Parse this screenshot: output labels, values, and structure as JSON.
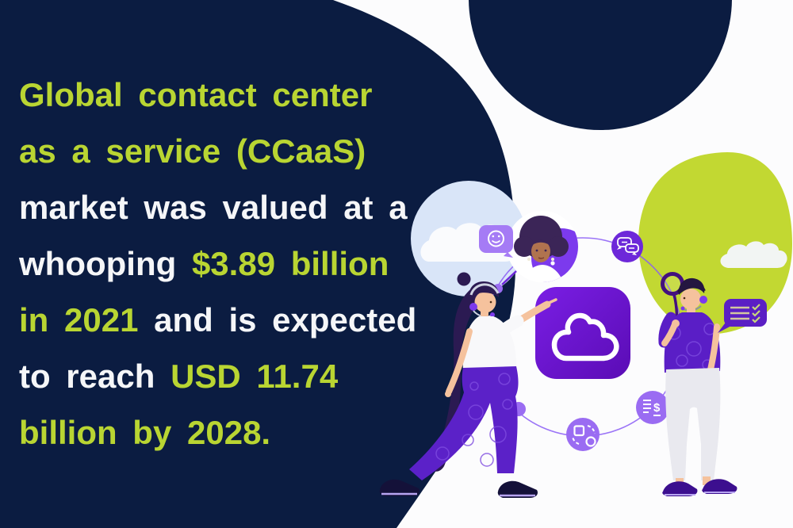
{
  "colors": {
    "navy": "#0b1c41",
    "lime": "#b9d532",
    "white": "#f5f6f8",
    "green_circle": "#c2d832",
    "light_blue_circle": "#d9e5f8",
    "purple_square": "#6912c9",
    "purple_dark": "#5b1fc4",
    "purple_icon_light": "#9a6cf2",
    "purple_icon_dark": "#6d28d9",
    "orbit": "#8a5cf6"
  },
  "headline": {
    "lines": [
      {
        "segments": [
          {
            "text": "Global contact center",
            "color": "lime"
          }
        ]
      },
      {
        "segments": [
          {
            "text": "as a service (CCaaS)",
            "color": "lime"
          }
        ]
      },
      {
        "segments": [
          {
            "text": "market was valued at a",
            "color": "white"
          }
        ]
      },
      {
        "segments": [
          {
            "text": "whooping ",
            "color": "white"
          },
          {
            "text": "$3.89 billion",
            "color": "lime"
          }
        ]
      },
      {
        "segments": [
          {
            "text": "in 2021 ",
            "color": "lime"
          },
          {
            "text": "and is expected",
            "color": "white"
          }
        ]
      },
      {
        "segments": [
          {
            "text": "to reach ",
            "color": "white"
          },
          {
            "text": "USD 11.74",
            "color": "lime"
          }
        ]
      },
      {
        "segments": [
          {
            "text": "billion by 2028.",
            "color": "lime"
          }
        ]
      }
    ],
    "stat_2021": "$3.89 billion",
    "stat_2028": "USD 11.74 billion"
  },
  "illustration": {
    "icons": [
      {
        "name": "smiley-icon"
      },
      {
        "name": "chat-bubbles-icon"
      },
      {
        "name": "cloud-icon"
      },
      {
        "name": "billing-icon"
      },
      {
        "name": "sync-icon"
      },
      {
        "name": "checklist-bubble-icon"
      }
    ],
    "billing_symbol": "$"
  }
}
